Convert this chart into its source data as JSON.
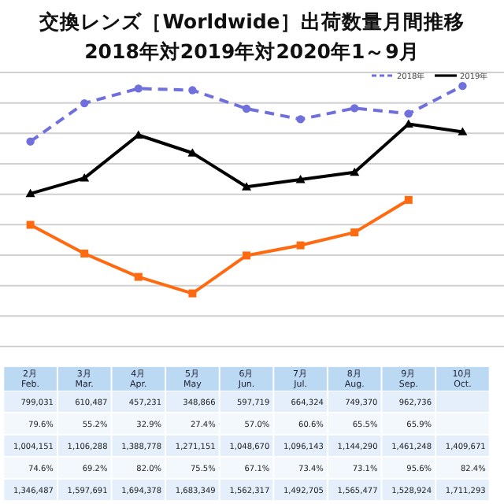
{
  "chart_data": {
    "type": "line",
    "title": "交換レンズ［Worldwide］出荷数量月間推移",
    "subtitle": "2018年対2019年対2020年1～9月",
    "categories": [
      "2月\nFeb.",
      "3月\nMar.",
      "4月\nApr.",
      "5月\nMay",
      "6月\nJun.",
      "7月\nJul.",
      "8月\nAug.",
      "9月\nSep.",
      "10月\nOct."
    ],
    "ylim": [
      0,
      1800000
    ],
    "yticks": [
      {
        "value": 0,
        "label": null
      },
      {
        "value": 200000,
        "label": null
      },
      {
        "value": 400000,
        "label": null
      },
      {
        "value": 600000,
        "label": null
      },
      {
        "value": 800000,
        "label": null
      },
      {
        "value": 1000000,
        "label": null
      },
      {
        "value": 1200000,
        "label": null
      },
      {
        "value": 1400000,
        "label": null
      },
      {
        "value": 1600000,
        "label": null
      },
      {
        "value": 1800000,
        "label": null
      }
    ],
    "grid": "y",
    "legend": "top right",
    "series": [
      {
        "name": "2018年",
        "color": "#7070dd",
        "marker": "circle",
        "line_style": "dashed",
        "values": [
          1346487,
          1597691,
          1694378,
          1683349,
          1562317,
          1492705,
          1565477,
          1528924,
          1711293
        ],
        "value_labels": [
          "1,346,487",
          "1,597,691",
          "1,694,378",
          "1,683,349",
          "1,562,317",
          "1,492,705",
          "1,565,477",
          "1,528,924",
          "1,711,293"
        ]
      },
      {
        "name": "2019年",
        "color": "#000000",
        "marker": "triangle",
        "line_style": "solid",
        "values": [
          1004151,
          1106288,
          1388778,
          1271151,
          1048670,
          1096143,
          1144290,
          1461248,
          1409671
        ],
        "value_labels": [
          "1,004,151",
          "1,106,288",
          "1,388,778",
          "1,271,151",
          "1,048,670",
          "1,096,143",
          "1,144,290",
          "1,461,248",
          "1,409,671"
        ]
      },
      {
        "color": "#ff6a10",
        "marker": "square",
        "line_style": "solid",
        "values": [
          799031,
          610487,
          457231,
          348866,
          597719,
          664324,
          749370,
          962736,
          null
        ],
        "value_labels": [
          "799,031",
          "610,487",
          "457,231",
          "348,866",
          "597,719",
          "664,324",
          "749,370",
          "962,736",
          null
        ]
      }
    ],
    "annotations": [
      "79.6%",
      "55.2%",
      "32.9%",
      "27.4%",
      "57.0%",
      "60.6%",
      "65.5%",
      "65.9%",
      "74.6%",
      "69.2%",
      "82.0%",
      "75.5%",
      "67.1%",
      "73.4%",
      "73.1%",
      "95.6%",
      "82.4%"
    ]
  }
}
